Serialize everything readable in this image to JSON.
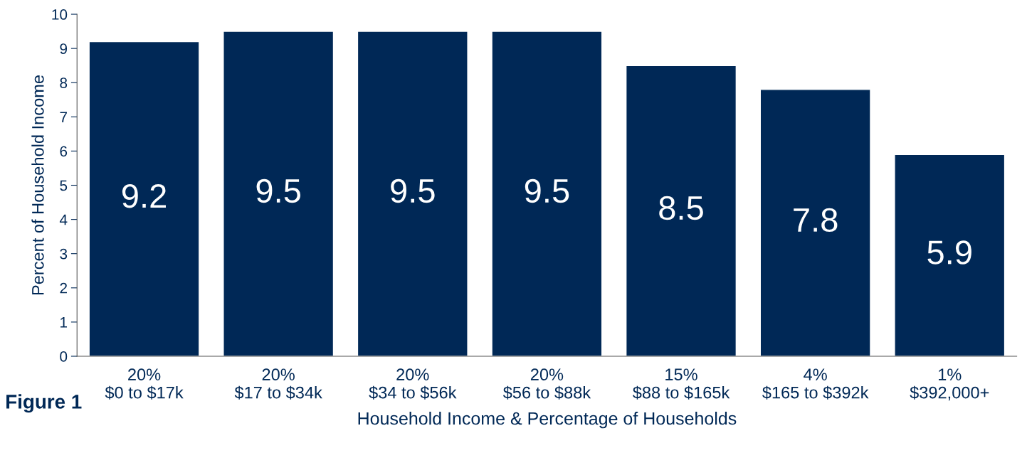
{
  "chart_data": {
    "type": "bar",
    "xlabel": "Household Income & Percentage of Households",
    "ylabel": "Percent of Household Income",
    "categories": [
      "20%\n$0 to $17k",
      "20%\n$17 to $34k",
      "20%\n$34 to $56k",
      "20%\n$56 to $88k",
      "15%\n$88 to $165k",
      "4%\n$165 to $392k",
      "1%\n$392,000+"
    ],
    "values": [
      9.2,
      9.5,
      9.5,
      9.5,
      8.5,
      7.8,
      5.9
    ],
    "color": "#002856",
    "ylim": [
      0,
      10
    ],
    "yticks": [
      0,
      1,
      2,
      3,
      4,
      5,
      6,
      7,
      8,
      9,
      10
    ],
    "data_labels": true,
    "grid": false,
    "annotations": [
      "Figure 1"
    ]
  }
}
